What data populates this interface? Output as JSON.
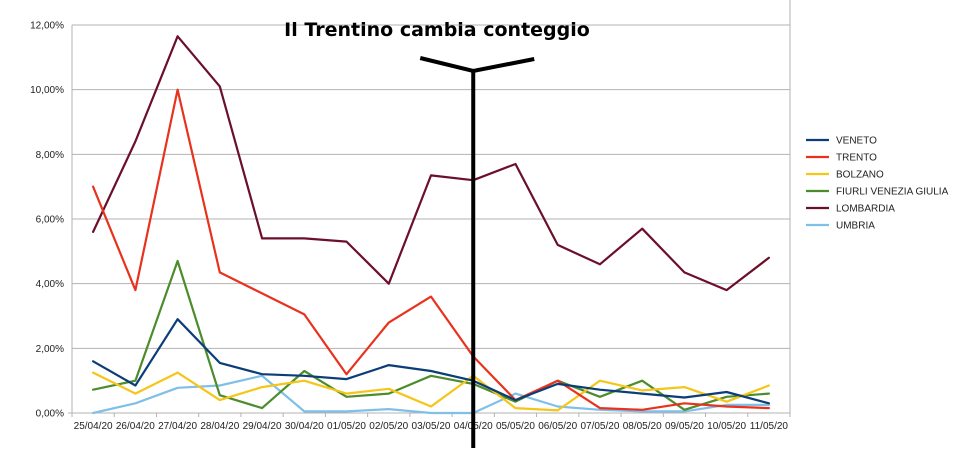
{
  "chart_data": {
    "type": "line",
    "title": "",
    "xlabel": "",
    "ylabel": "",
    "ylim": [
      0,
      12
    ],
    "yticks": [
      0,
      2,
      4,
      6,
      8,
      10,
      12
    ],
    "ytick_labels": [
      "0,00%",
      "2,00%",
      "4,00%",
      "6,00%",
      "8,00%",
      "10,00%",
      "12,00%"
    ],
    "grid": "horizontal",
    "legend_position": "right",
    "categories": [
      "25/04/20",
      "26/04/20",
      "27/04/20",
      "28/04/20",
      "29/04/20",
      "30/04/20",
      "01/05/20",
      "02/05/20",
      "03/05/20",
      "04/05/20",
      "05/05/20",
      "06/05/20",
      "07/05/20",
      "08/05/20",
      "09/05/20",
      "10/05/20",
      "11/05/20"
    ],
    "series": [
      {
        "name": "VENETO",
        "color": "#0b3d78",
        "values": [
          1.6,
          0.85,
          2.9,
          1.55,
          1.2,
          1.15,
          1.05,
          1.48,
          1.3,
          1.0,
          0.4,
          0.9,
          0.72,
          0.6,
          0.48,
          0.65,
          0.3
        ]
      },
      {
        "name": "TRENTO",
        "color": "#e8321e",
        "values": [
          7.0,
          3.8,
          10.0,
          4.35,
          3.7,
          3.05,
          1.2,
          2.8,
          3.6,
          1.75,
          0.4,
          1.0,
          0.15,
          0.1,
          0.3,
          0.2,
          0.15
        ]
      },
      {
        "name": "BOLZANO",
        "color": "#f5c518",
        "values": [
          1.25,
          0.6,
          1.25,
          0.4,
          0.8,
          1.0,
          0.6,
          0.75,
          0.2,
          1.15,
          0.15,
          0.08,
          1.0,
          0.7,
          0.8,
          0.35,
          0.85
        ]
      },
      {
        "name": "FIURLI VENEZIA GIULIA",
        "color": "#4c8c2b",
        "values": [
          0.72,
          1.0,
          4.7,
          0.55,
          0.15,
          1.3,
          0.5,
          0.6,
          1.15,
          0.9,
          0.35,
          1.0,
          0.5,
          1.0,
          0.1,
          0.5,
          0.6
        ]
      },
      {
        "name": "LOMBARDIA",
        "color": "#6b0f2a",
        "values": [
          5.6,
          8.4,
          11.65,
          10.1,
          5.4,
          5.4,
          5.3,
          4.0,
          7.35,
          7.2,
          7.7,
          5.2,
          4.6,
          5.7,
          4.35,
          3.8,
          4.8
        ]
      },
      {
        "name": "UMBRIA",
        "color": "#7fbfe8",
        "values": [
          0.0,
          0.3,
          0.78,
          0.85,
          1.15,
          0.05,
          0.05,
          0.12,
          0.0,
          0.0,
          0.6,
          0.2,
          0.1,
          0.05,
          0.05,
          0.25,
          0.25
        ]
      }
    ],
    "annotation": {
      "text": "Il Trentino cambia conteggio",
      "category": "04/05/20"
    }
  }
}
